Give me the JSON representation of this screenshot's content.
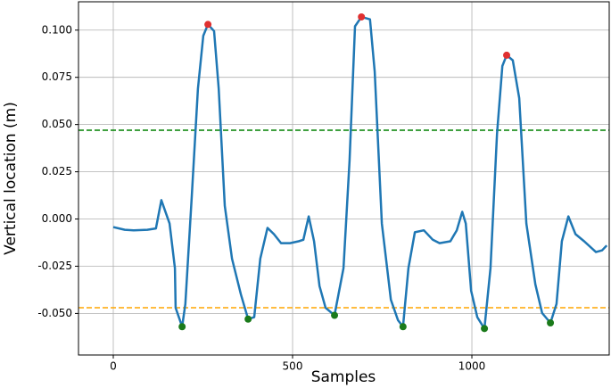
{
  "chart_data": {
    "type": "line",
    "xlabel": "Samples",
    "ylabel": "Vertical location (m)",
    "xlim": [
      -97,
      1383
    ],
    "ylim": [
      -0.072,
      0.115
    ],
    "xticks": [
      0,
      500,
      1000
    ],
    "yticks": [
      {
        "value": -0.05,
        "label": "-0.050"
      },
      -0.025,
      {
        "value": 0,
        "label": "0.000"
      },
      0.025,
      {
        "value": 0.05,
        "label": "0.050"
      },
      0.075,
      {
        "value": 0.1,
        "label": "0.100"
      }
    ],
    "grid": true,
    "hlines": [
      {
        "value": 0.047,
        "color": "#008000",
        "style": "dashed"
      },
      {
        "value": -0.047,
        "color": "#ffa500",
        "style": "dashed"
      }
    ],
    "series": [
      {
        "type": "line",
        "color": "#1f77b4",
        "x": [
          0,
          32,
          57,
          95,
          119,
          134,
          157,
          172,
          174,
          192,
          201,
          219,
          236,
          251,
          264,
          281,
          294,
          311,
          331,
          356,
          376,
          393,
          410,
          430,
          448,
          468,
          493,
          517,
          530,
          545,
          560,
          575,
          592,
          617,
          642,
          659,
          674,
          692,
          716,
          729,
          749,
          774,
          794,
          808,
          823,
          841,
          866,
          891,
          910,
          940,
          958,
          973,
          983,
          998,
          1015,
          1035,
          1052,
          1070,
          1085,
          1097,
          1114,
          1132,
          1152,
          1177,
          1196,
          1219,
          1236,
          1251,
          1269,
          1289,
          1313,
          1346,
          1363,
          1376
        ],
        "values": [
          -0.0043,
          -0.0057,
          -0.006,
          -0.0057,
          -0.005,
          0.01,
          -0.0024,
          -0.026,
          -0.047,
          -0.057,
          -0.045,
          0.012,
          0.069,
          0.097,
          0.103,
          0.0995,
          0.069,
          0.007,
          -0.021,
          -0.04,
          -0.053,
          -0.052,
          -0.021,
          -0.0047,
          -0.008,
          -0.0128,
          -0.0128,
          -0.0118,
          -0.011,
          0.0014,
          -0.0118,
          -0.0355,
          -0.047,
          -0.051,
          -0.026,
          0.031,
          0.102,
          0.107,
          0.1057,
          0.078,
          -0.0024,
          -0.0427,
          -0.0536,
          -0.057,
          -0.026,
          -0.007,
          -0.006,
          -0.011,
          -0.0128,
          -0.0118,
          -0.006,
          0.0038,
          -0.0024,
          -0.038,
          -0.052,
          -0.058,
          -0.026,
          0.045,
          0.081,
          0.0867,
          0.084,
          0.064,
          -0.0024,
          -0.0346,
          -0.0498,
          -0.055,
          -0.045,
          -0.0118,
          0.0014,
          -0.008,
          -0.0118,
          -0.0175,
          -0.0166,
          -0.014
        ]
      },
      {
        "type": "scatter",
        "color": "#e03030",
        "x": [
          264,
          692,
          1097
        ],
        "values": [
          0.103,
          0.107,
          0.0867
        ]
      },
      {
        "type": "scatter",
        "color": "#1a7a1a",
        "x": [
          192,
          376,
          617,
          808,
          1035,
          1219
        ],
        "values": [
          -0.057,
          -0.053,
          -0.051,
          -0.057,
          -0.058,
          -0.055
        ]
      }
    ]
  }
}
